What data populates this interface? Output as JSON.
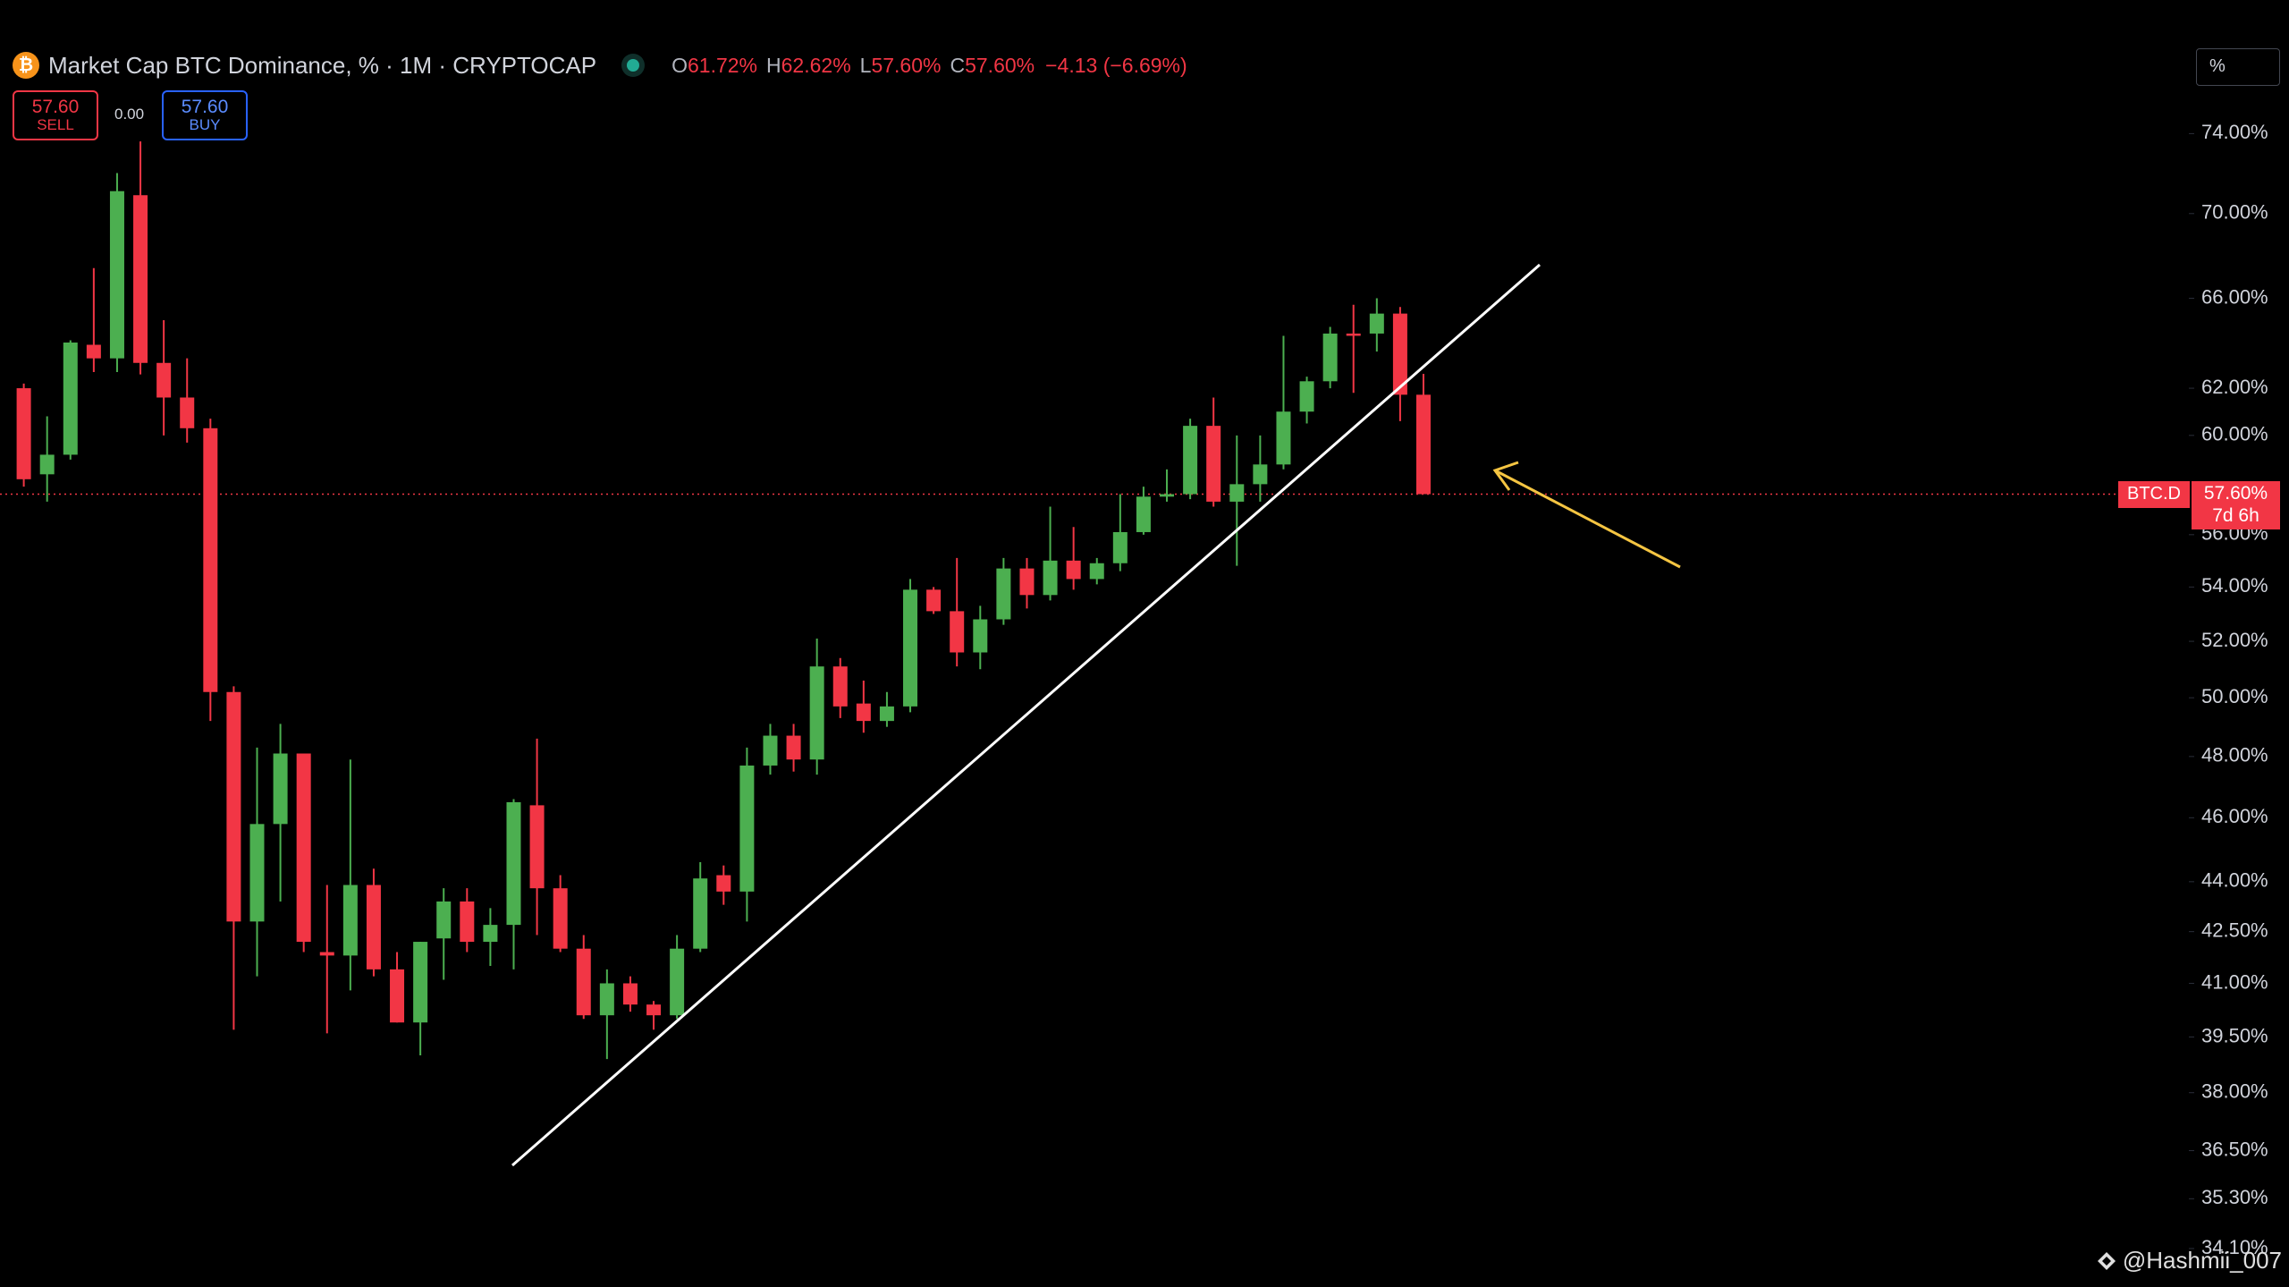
{
  "chart_data": {
    "type": "candlestick",
    "title": "Market Cap BTC Dominance, % · 1M · CRYPTOCAP",
    "readout": [
      {
        "key": "O",
        "text": "61.72%"
      },
      {
        "key": "H",
        "text": "62.62%"
      },
      {
        "key": "L",
        "text": "57.60%"
      },
      {
        "key": "C",
        "text": "57.60%"
      }
    ],
    "change": "−4.13 (−6.69%)",
    "trade": {
      "sell_price": "57.60",
      "sell": "SELL",
      "spread": "0.00",
      "buy_price": "57.60",
      "buy": "BUY"
    },
    "scale_mode": "%",
    "log_scale": true,
    "up_color": "#4caf50",
    "down_color": "#f23645",
    "ylim": [
      33.2,
      81.2
    ],
    "yticks": [
      {
        "value": 74,
        "label": "74.00%"
      },
      {
        "value": 70,
        "label": "70.00%"
      },
      {
        "value": 66,
        "label": "66.00%"
      },
      {
        "value": 62,
        "label": "62.00%"
      },
      {
        "value": 60,
        "label": "60.00%"
      },
      {
        "value": 56,
        "label": "56.00%"
      },
      {
        "value": 54,
        "label": "54.00%"
      },
      {
        "value": 52,
        "label": "52.00%"
      },
      {
        "value": 50,
        "label": "50.00%"
      },
      {
        "value": 48,
        "label": "48.00%"
      },
      {
        "value": 46,
        "label": "46.00%"
      },
      {
        "value": 44,
        "label": "44.00%"
      },
      {
        "value": 42.5,
        "label": "42.50%"
      },
      {
        "value": 41,
        "label": "41.00%"
      },
      {
        "value": 39.5,
        "label": "39.50%"
      },
      {
        "value": 38,
        "label": "38.00%"
      },
      {
        "value": 36.5,
        "label": "36.50%"
      },
      {
        "value": 35.3,
        "label": "35.30%"
      },
      {
        "value": 34.1,
        "label": "34.10%"
      }
    ],
    "open": [
      62.0,
      58.4,
      59.2,
      63.9,
      63.3,
      70.9,
      63.1,
      61.6,
      60.3,
      50.2,
      42.8,
      45.8,
      48.1,
      41.9,
      41.8,
      43.9,
      41.4,
      39.9,
      42.3,
      43.4,
      42.2,
      42.7,
      46.4,
      43.8,
      42.0,
      40.1,
      41.0,
      40.4,
      40.1,
      42.0,
      44.2,
      43.7,
      47.7,
      48.7,
      47.9,
      51.1,
      49.8,
      49.2,
      49.7,
      53.9,
      53.1,
      51.6,
      52.8,
      54.7,
      53.7,
      55.0,
      54.3,
      54.9,
      56.1,
      57.5,
      57.6,
      60.4,
      57.3,
      58.0,
      58.8,
      61.0,
      62.3,
      64.4,
      64.4,
      65.3,
      61.72
    ],
    "high": [
      62.2,
      60.8,
      64.1,
      67.4,
      72.0,
      73.6,
      65.0,
      63.3,
      60.7,
      50.4,
      48.3,
      49.1,
      48.1,
      43.9,
      47.9,
      44.4,
      41.9,
      42.2,
      43.8,
      43.8,
      43.2,
      46.6,
      48.6,
      44.2,
      42.4,
      41.4,
      41.2,
      40.5,
      42.4,
      44.6,
      44.5,
      48.3,
      49.1,
      49.1,
      52.1,
      51.4,
      50.6,
      50.2,
      54.3,
      54.0,
      55.1,
      53.3,
      55.1,
      55.1,
      57.1,
      56.3,
      55.1,
      57.6,
      57.9,
      58.6,
      60.7,
      61.6,
      60.0,
      60.0,
      64.3,
      62.5,
      64.7,
      65.7,
      66.0,
      65.6,
      62.62
    ],
    "low": [
      57.9,
      57.3,
      59.0,
      62.7,
      62.7,
      62.6,
      60.0,
      59.7,
      49.2,
      39.7,
      41.2,
      43.4,
      41.9,
      39.6,
      40.8,
      41.2,
      39.9,
      39.0,
      41.1,
      41.9,
      41.5,
      41.4,
      42.4,
      41.9,
      40.0,
      38.9,
      40.2,
      39.7,
      40.0,
      41.9,
      43.3,
      42.8,
      47.4,
      47.5,
      47.4,
      49.3,
      48.8,
      49.0,
      49.5,
      53.0,
      51.1,
      51.0,
      52.6,
      53.2,
      53.5,
      53.9,
      54.1,
      54.6,
      56.0,
      57.3,
      57.4,
      57.1,
      54.8,
      57.3,
      58.6,
      60.5,
      62.0,
      61.8,
      63.6,
      60.6,
      57.6
    ],
    "close": [
      58.2,
      59.2,
      64.0,
      63.3,
      71.1,
      63.1,
      61.6,
      60.3,
      50.2,
      42.8,
      45.8,
      48.1,
      42.2,
      41.8,
      43.9,
      41.4,
      39.9,
      42.2,
      43.4,
      42.2,
      42.7,
      46.5,
      43.8,
      42.0,
      40.1,
      41.0,
      40.4,
      40.1,
      42.0,
      44.1,
      43.7,
      47.7,
      48.7,
      47.9,
      51.1,
      49.7,
      49.2,
      49.7,
      53.9,
      53.1,
      51.6,
      52.8,
      54.7,
      53.7,
      55.0,
      54.3,
      54.9,
      56.1,
      57.5,
      57.6,
      60.4,
      57.3,
      58.0,
      58.8,
      61.0,
      62.3,
      64.4,
      64.3,
      65.3,
      61.72,
      57.6
    ],
    "last_price": {
      "symbol": "BTC.D",
      "value": 57.6,
      "label": "57.60%",
      "countdown": "7d 6h"
    },
    "watermark": "@Hashmii_007"
  }
}
